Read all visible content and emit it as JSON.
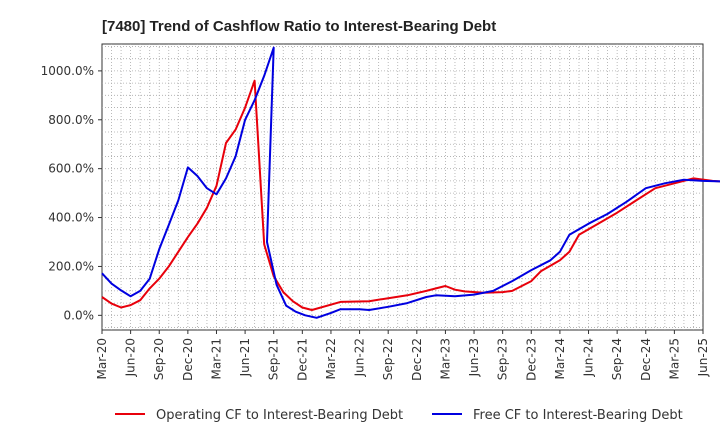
{
  "chart_data": {
    "type": "line",
    "title": "[7480]  Trend of Cashflow Ratio to Interest-Bearing Debt",
    "xlabel": "",
    "ylabel": "",
    "y_tick_labels": [
      "0.0%",
      "200.0%",
      "400.0%",
      "600.0%",
      "800.0%",
      "1000.0%"
    ],
    "y_ticks": [
      0,
      200,
      400,
      600,
      800,
      1000
    ],
    "ylim": [
      -60,
      1110
    ],
    "x_tick_labels": [
      "Mar-20",
      "Jun-20",
      "Sep-20",
      "Dec-20",
      "Mar-21",
      "Jun-21",
      "Sep-21",
      "Dec-21",
      "Mar-22",
      "Jun-22",
      "Sep-22",
      "Dec-22",
      "Mar-23",
      "Jun-23",
      "Sep-23",
      "Dec-23",
      "Mar-24",
      "Jun-24",
      "Sep-24",
      "Dec-24",
      "Mar-25",
      "Jun-25"
    ],
    "grid": true,
    "legend_position": "bottom",
    "series": [
      {
        "name": "Operating CF to Interest-Bearing Debt",
        "color": "#e8000b",
        "points": [
          [
            0,
            75
          ],
          [
            1,
            48
          ],
          [
            2,
            32
          ],
          [
            3,
            42
          ],
          [
            4,
            62
          ],
          [
            5,
            110
          ],
          [
            6,
            150
          ],
          [
            7,
            200
          ],
          [
            8,
            260
          ],
          [
            9,
            320
          ],
          [
            10,
            375
          ],
          [
            11,
            440
          ],
          [
            12,
            530
          ],
          [
            13,
            705
          ],
          [
            14,
            760
          ],
          [
            15,
            850
          ],
          [
            16,
            960
          ],
          [
            17,
            290
          ],
          [
            18,
            160
          ],
          [
            19,
            95
          ],
          [
            20,
            58
          ],
          [
            21,
            32
          ],
          [
            22,
            22
          ],
          [
            25,
            55
          ],
          [
            28,
            58
          ],
          [
            30,
            70
          ],
          [
            32,
            82
          ],
          [
            34,
            100
          ],
          [
            35,
            110
          ],
          [
            36,
            120
          ],
          [
            37,
            105
          ],
          [
            38,
            98
          ],
          [
            40,
            92
          ],
          [
            42,
            95
          ],
          [
            43,
            100
          ],
          [
            45,
            140
          ],
          [
            46,
            180
          ],
          [
            48,
            225
          ],
          [
            49,
            260
          ],
          [
            50,
            330
          ],
          [
            52,
            375
          ],
          [
            54,
            420
          ],
          [
            56,
            470
          ],
          [
            58,
            520
          ],
          [
            60,
            540
          ],
          [
            62,
            560
          ],
          [
            64,
            550
          ],
          [
            66,
            545
          ]
        ]
      },
      {
        "name": "Free CF to Interest-Bearing Debt",
        "color": "#0000e0",
        "points": [
          [
            0,
            172
          ],
          [
            1,
            130
          ],
          [
            2,
            102
          ],
          [
            3,
            78
          ],
          [
            4,
            100
          ],
          [
            5,
            150
          ],
          [
            6,
            270
          ],
          [
            7,
            370
          ],
          [
            8,
            470
          ],
          [
            9,
            605
          ],
          [
            10,
            570
          ],
          [
            11,
            520
          ],
          [
            12,
            495
          ],
          [
            13,
            560
          ],
          [
            14,
            650
          ],
          [
            15,
            800
          ],
          [
            16,
            880
          ],
          [
            17,
            980
          ],
          [
            18,
            1095
          ],
          [
            17.3,
            300
          ],
          [
            18.3,
            125
          ],
          [
            19.3,
            40
          ],
          [
            20.3,
            15
          ],
          [
            21.3,
            0
          ],
          [
            22.5,
            -10
          ],
          [
            24,
            10
          ],
          [
            25,
            25
          ],
          [
            27,
            25
          ],
          [
            28,
            22
          ],
          [
            30,
            35
          ],
          [
            32,
            50
          ],
          [
            34,
            75
          ],
          [
            35,
            82
          ],
          [
            37,
            78
          ],
          [
            39,
            85
          ],
          [
            41,
            100
          ],
          [
            43,
            140
          ],
          [
            45,
            185
          ],
          [
            47,
            225
          ],
          [
            48,
            260
          ],
          [
            49,
            330
          ],
          [
            51,
            375
          ],
          [
            53,
            415
          ],
          [
            55,
            465
          ],
          [
            57,
            520
          ],
          [
            59,
            540
          ],
          [
            61,
            555
          ],
          [
            63,
            550
          ],
          [
            65,
            548
          ]
        ]
      }
    ]
  }
}
